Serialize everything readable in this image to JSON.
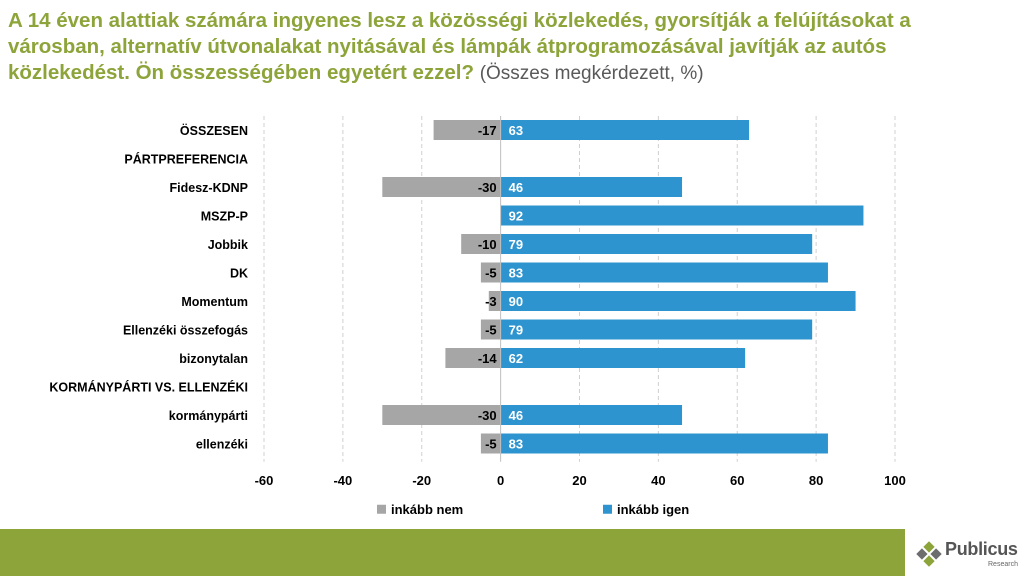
{
  "title": {
    "main": "A 14 éven alattiak számára ingyenes lesz a közösségi közlekedés, gyorsítják a felújításokat a városban, alternatív útvonalakat nyitásával és lámpák átprogramozásával javítják az autós közlekedést. Ön összességében egyetért ezzel?",
    "subtitle": "(Összes megkérdezett, %)"
  },
  "chart_data": {
    "type": "bar",
    "orientation": "horizontal",
    "categories": [
      "ÖSSZESEN",
      "PÁRTPREFERENCIA",
      "Fidesz-KDNP",
      "MSZP-P",
      "Jobbik",
      "DK",
      "Momentum",
      "Ellenzéki összefogás",
      "bizonytalan",
      "KORMÁNYPÁRTI VS. ELLENZÉKI",
      "kormánypárti",
      "ellenzéki"
    ],
    "group_headers": [
      "PÁRTPREFERENCIA",
      "KORMÁNYPÁRTI VS. ELLENZÉKI"
    ],
    "series": [
      {
        "name": "inkább nem",
        "color": "#a6a6a6",
        "values": [
          -17,
          null,
          -30,
          null,
          -10,
          -5,
          -3,
          -5,
          -14,
          null,
          -30,
          -5
        ]
      },
      {
        "name": "inkább igen",
        "color": "#2e94cf",
        "values": [
          63,
          null,
          46,
          92,
          79,
          83,
          90,
          79,
          62,
          null,
          46,
          83
        ]
      }
    ],
    "xlim": [
      -60,
      100
    ],
    "xticks": [
      -60,
      -40,
      -20,
      0,
      20,
      40,
      60,
      80,
      100
    ],
    "grid": true,
    "legend": "bottom"
  },
  "footer": {
    "brand": "Publicus",
    "brand_sub": "Research",
    "band_color": "#8da43a"
  }
}
